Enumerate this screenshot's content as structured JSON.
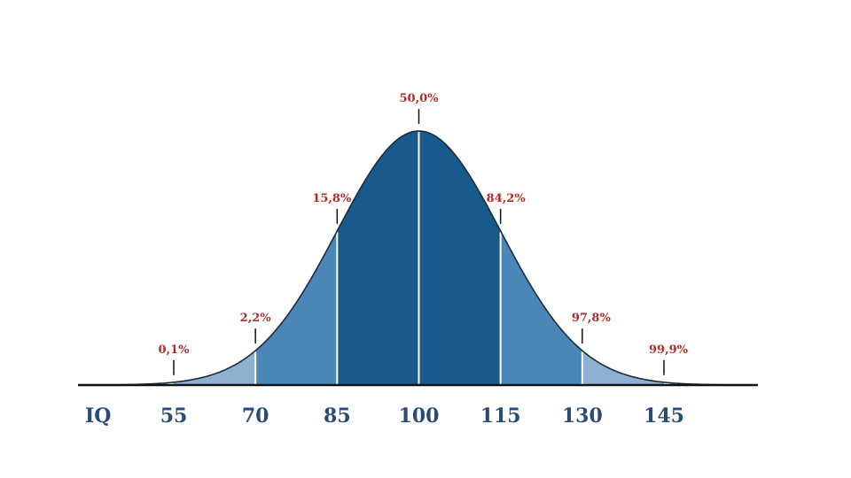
{
  "chart_data": {
    "type": "area",
    "xlabel": "IQ",
    "x_ticks": [
      55,
      70,
      85,
      100,
      115,
      130,
      145
    ],
    "mean": 100,
    "sd": 15,
    "xlim": [
      45,
      159
    ],
    "percentiles": [
      {
        "x": 55,
        "label": "0,1%"
      },
      {
        "x": 70,
        "label": "2,2%"
      },
      {
        "x": 85,
        "label": "15,8%"
      },
      {
        "x": 100,
        "label": "50,0%"
      },
      {
        "x": 115,
        "label": "84,2%"
      },
      {
        "x": 130,
        "label": "97,8%"
      },
      {
        "x": 145,
        "label": "99,9%"
      }
    ],
    "bands": [
      {
        "from": 55,
        "to": 70,
        "color": "#8fb1d1"
      },
      {
        "from": 70,
        "to": 85,
        "color": "#4a87b8"
      },
      {
        "from": 85,
        "to": 115,
        "color": "#185a8b"
      },
      {
        "from": 115,
        "to": 130,
        "color": "#4a87b8"
      },
      {
        "from": 130,
        "to": 145,
        "color": "#8fb1d1"
      }
    ],
    "colors": {
      "curve": "#1b2b3a",
      "axis": "#111111",
      "tick_label": "#2b4a78",
      "pct_label": "#b22a2a",
      "divider": "#ffffff"
    }
  }
}
